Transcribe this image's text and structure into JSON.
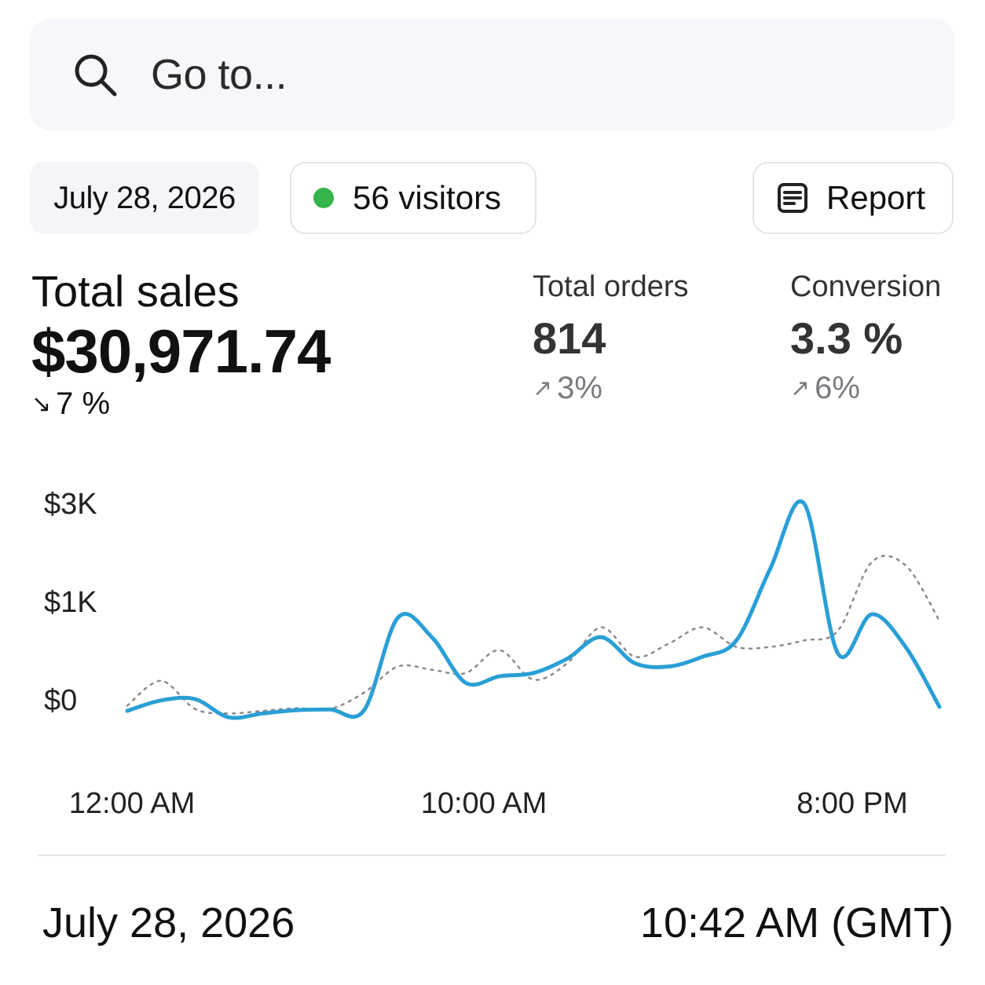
{
  "search": {
    "placeholder": "Go to..."
  },
  "toolbar": {
    "date": "July 28, 2026",
    "visitors": "56 visitors",
    "report_label": "Report"
  },
  "metrics": {
    "sales": {
      "label": "Total sales",
      "value": "$30,971.74",
      "change": "7 %",
      "direction": "down"
    },
    "orders": {
      "label": "Total orders",
      "value": "814",
      "change": "3%",
      "direction": "up"
    },
    "conversion": {
      "label": "Conversion",
      "value": "3.3 %",
      "change": "6%",
      "direction": "up"
    }
  },
  "colors": {
    "accent": "#2a9fd6",
    "live": "#34b44a",
    "comparison": "#8a8a90"
  },
  "chart_data": {
    "type": "line",
    "yticks": [
      "$3K",
      "$1K",
      "$0"
    ],
    "xticks": [
      "12:00 AM",
      "10:00 AM",
      "8:00 PM"
    ],
    "series": [
      {
        "style": "solid",
        "values": [
          -0.18,
          -0.02,
          0.0,
          -0.28,
          -0.22,
          -0.17,
          -0.16,
          -0.17,
          1.25,
          0.95,
          0.25,
          0.35,
          0.4,
          0.62,
          0.95,
          0.55,
          0.5,
          0.65,
          0.9,
          2.0,
          3.0,
          0.7,
          1.3,
          0.8,
          -0.12
        ]
      },
      {
        "style": "dotted",
        "values": [
          -0.1,
          0.28,
          -0.15,
          -0.22,
          -0.18,
          -0.14,
          -0.15,
          0.1,
          0.5,
          0.45,
          0.4,
          0.75,
          0.3,
          0.55,
          1.1,
          0.65,
          0.85,
          1.1,
          0.8,
          0.8,
          0.9,
          1.05,
          2.1,
          2.05,
          1.2
        ]
      }
    ]
  },
  "footer": {
    "date": "July 28, 2026",
    "time": "10:42 AM (GMT)"
  }
}
